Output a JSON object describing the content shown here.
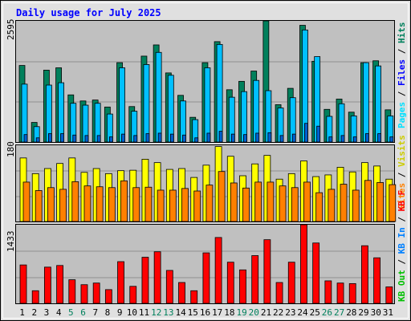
{
  "title": "Daily usage for July 2025",
  "colors": {
    "background": "#E0E0E0",
    "plot_bg": "#C0C0C0",
    "border": "#000000",
    "title": "#0000FF",
    "hits": "#00805C",
    "files": "#00C0FF",
    "pages": "#00E0FF",
    "visits": "#FFFF00",
    "sites": "#FF8000",
    "kbin": "#FF0000",
    "weekend_label": "#00805C",
    "weekday_label": "#000000"
  },
  "chart_data": [
    {
      "type": "bar",
      "name": "hits-files-pages",
      "ymax_label": "2595",
      "ylim": [
        0,
        2595
      ],
      "legend": [
        {
          "text": "Hits",
          "color": "#00805C"
        },
        {
          "text": "Files",
          "color": "#0000FF"
        },
        {
          "text": "Pages",
          "color": "#00E0FF"
        }
      ],
      "categories": [
        "1",
        "2",
        "3",
        "4",
        "5",
        "6",
        "7",
        "8",
        "9",
        "10",
        "11",
        "12",
        "13",
        "14",
        "15",
        "16",
        "17",
        "18",
        "19",
        "20",
        "21",
        "22",
        "23",
        "24",
        "25",
        "26",
        "27",
        "28",
        "29",
        "30",
        "31"
      ],
      "series": [
        {
          "name": "Hits",
          "values": [
            1640,
            420,
            1540,
            1590,
            1010,
            880,
            900,
            750,
            1700,
            760,
            1840,
            2080,
            1480,
            1000,
            530,
            1700,
            2150,
            1120,
            1300,
            1520,
            2595,
            800,
            1150,
            2500,
            1730,
            700,
            920,
            640,
            1700,
            1740,
            690
          ]
        },
        {
          "name": "Files",
          "values": [
            1240,
            330,
            1220,
            1270,
            830,
            790,
            830,
            600,
            1590,
            660,
            1660,
            1920,
            1430,
            880,
            480,
            1590,
            2090,
            960,
            1080,
            1320,
            1100,
            730,
            950,
            2400,
            1830,
            550,
            820,
            560,
            1700,
            1630,
            560
          ]
        },
        {
          "name": "Pages",
          "values": [
            160,
            90,
            180,
            180,
            150,
            140,
            140,
            110,
            170,
            140,
            180,
            190,
            170,
            150,
            90,
            190,
            230,
            170,
            160,
            190,
            200,
            140,
            170,
            400,
            340,
            110,
            140,
            110,
            180,
            180,
            110
          ]
        }
      ]
    },
    {
      "type": "bar",
      "name": "visits-sites",
      "ymax_label": "180",
      "ylim": [
        0,
        180
      ],
      "legend": [
        {
          "text": "Visits",
          "color": "#CCCC00"
        },
        {
          "text": "Sites",
          "color": "#FF8000"
        }
      ],
      "categories": [
        "1",
        "2",
        "3",
        "4",
        "5",
        "6",
        "7",
        "8",
        "9",
        "10",
        "11",
        "12",
        "13",
        "14",
        "15",
        "16",
        "17",
        "18",
        "19",
        "20",
        "21",
        "22",
        "23",
        "24",
        "25",
        "26",
        "27",
        "28",
        "29",
        "30",
        "31"
      ],
      "series": [
        {
          "name": "Visits",
          "values": [
            150,
            113,
            125,
            137,
            150,
            116,
            125,
            113,
            120,
            121,
            147,
            139,
            123,
            125,
            104,
            133,
            177,
            154,
            108,
            136,
            156,
            100,
            113,
            143,
            106,
            110,
            128,
            117,
            139,
            131,
            100
          ]
        },
        {
          "name": "Sites",
          "values": [
            93,
            73,
            80,
            76,
            94,
            84,
            82,
            80,
            96,
            80,
            81,
            74,
            74,
            78,
            72,
            86,
            118,
            91,
            79,
            93,
            93,
            84,
            80,
            93,
            68,
            76,
            88,
            74,
            97,
            92,
            87
          ]
        }
      ]
    },
    {
      "type": "bar",
      "name": "kbytes",
      "ymax_label": "1433",
      "ylim": [
        0,
        1433
      ],
      "legend": [
        {
          "text": "KB F",
          "color": "#FF0000"
        },
        {
          "text": "KB In",
          "color": "#0080FF"
        },
        {
          "text": "KB Out",
          "color": "#00C000"
        }
      ],
      "categories": [
        "1",
        "2",
        "3",
        "4",
        "5",
        "6",
        "7",
        "8",
        "9",
        "10",
        "11",
        "12",
        "13",
        "14",
        "15",
        "16",
        "17",
        "18",
        "19",
        "20",
        "21",
        "22",
        "23",
        "24",
        "25",
        "26",
        "27",
        "28",
        "29",
        "30",
        "31"
      ],
      "series": [
        {
          "name": "KB F",
          "values": [
            700,
            230,
            660,
            690,
            430,
            340,
            370,
            250,
            760,
            310,
            840,
            940,
            600,
            380,
            230,
            920,
            1200,
            750,
            610,
            870,
            1160,
            380,
            750,
            1433,
            1100,
            410,
            370,
            360,
            1050,
            830,
            300
          ]
        }
      ]
    }
  ],
  "weekend_days": [
    "5",
    "6",
    "12",
    "13",
    "19",
    "20",
    "26",
    "27"
  ]
}
